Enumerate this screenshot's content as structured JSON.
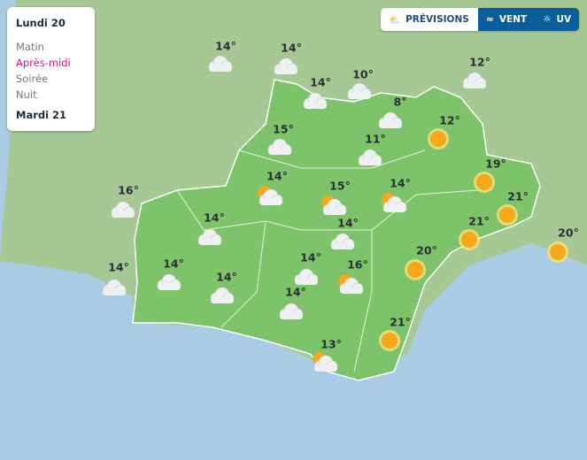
{
  "days": [
    {
      "label": "Lundi 20",
      "periods": [
        {
          "label": "Matin",
          "active": false
        },
        {
          "label": "Après-midi",
          "active": true
        },
        {
          "label": "Soirée",
          "active": false
        },
        {
          "label": "Nuit",
          "active": false
        }
      ]
    },
    {
      "label": "Mardi 21"
    }
  ],
  "tabs": [
    {
      "label": "PRÉVISIONS",
      "icon": "sun-cloud-icon",
      "active": true
    },
    {
      "label": "VENT",
      "icon": "wind-icon",
      "active": false
    },
    {
      "label": "UV",
      "icon": "uv-sun-icon",
      "active": false
    }
  ],
  "colors": {
    "active_period": "#d6177a",
    "tab_active_bg": "#ffffff",
    "tab_bg": "#0b5e9c",
    "sea": "#a9cce4",
    "land": "#a6c895",
    "region": "#7cc36a",
    "sun": "#f5a81c"
  },
  "forecasts": [
    {
      "temp": "14°",
      "icon": "cloud"
    },
    {
      "temp": "14°",
      "icon": "cloud"
    },
    {
      "temp": "10°",
      "icon": "cloud"
    },
    {
      "temp": "12°",
      "icon": "cloud"
    },
    {
      "temp": "14°",
      "icon": "cloud"
    },
    {
      "temp": "8°",
      "icon": "cloud"
    },
    {
      "temp": "12°",
      "icon": "sun"
    },
    {
      "temp": "15°",
      "icon": "cloud"
    },
    {
      "temp": "11°",
      "icon": "cloud"
    },
    {
      "temp": "19°",
      "icon": "sun"
    },
    {
      "temp": "14°",
      "icon": "sun-cloud"
    },
    {
      "temp": "15°",
      "icon": "sun-cloud"
    },
    {
      "temp": "14°",
      "icon": "sun-cloud"
    },
    {
      "temp": "21°",
      "icon": "sun"
    },
    {
      "temp": "16°",
      "icon": "cloud"
    },
    {
      "temp": "14°",
      "icon": "cloud"
    },
    {
      "temp": "14°",
      "icon": "cloud"
    },
    {
      "temp": "21°",
      "icon": "sun"
    },
    {
      "temp": "20°",
      "icon": "sun"
    },
    {
      "temp": "14°",
      "icon": "cloud"
    },
    {
      "temp": "14°",
      "icon": "cloud"
    },
    {
      "temp": "14°",
      "icon": "cloud"
    },
    {
      "temp": "16°",
      "icon": "sun-cloud"
    },
    {
      "temp": "20°",
      "icon": "sun"
    },
    {
      "temp": "14°",
      "icon": "cloud"
    },
    {
      "temp": "14°",
      "icon": "cloud"
    },
    {
      "temp": "21°",
      "icon": "sun"
    },
    {
      "temp": "13°",
      "icon": "sun-cloud"
    }
  ]
}
